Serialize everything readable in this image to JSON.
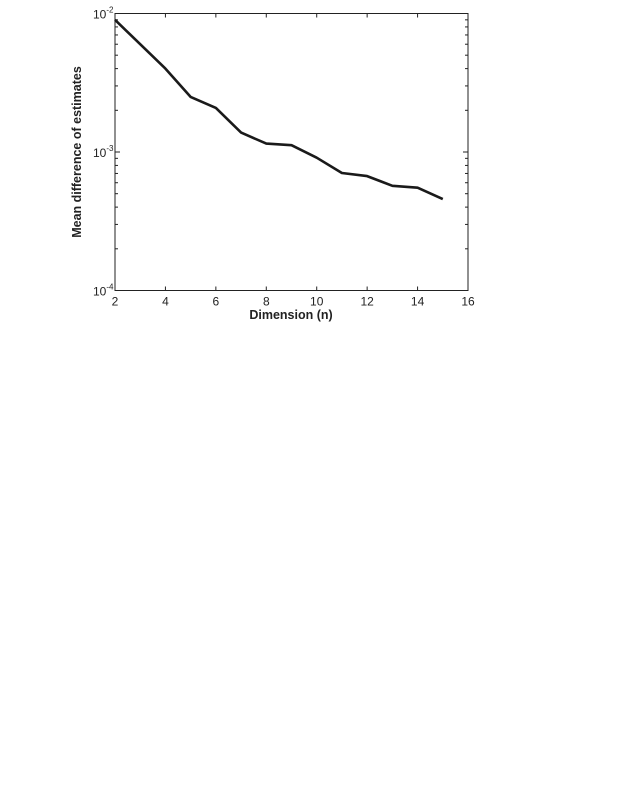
{
  "chart_data": {
    "type": "line",
    "title": "",
    "xlabel": "Dimension (n)",
    "ylabel": "Mean difference of estimates",
    "xlim": [
      2,
      16
    ],
    "ylim": [
      0.0001,
      0.01
    ],
    "yscale": "log",
    "grid": false,
    "xticks": [
      "2",
      "4",
      "6",
      "8",
      "10",
      "12",
      "14",
      "16"
    ],
    "yticks": [
      {
        "base": "10",
        "exp": "-4"
      },
      {
        "base": "10",
        "exp": "-3"
      },
      {
        "base": "10",
        "exp": "-2"
      }
    ],
    "series": [
      {
        "color": "#1a1a1a",
        "x": [
          2,
          3,
          4,
          5,
          6,
          7,
          8,
          9,
          10,
          11,
          12,
          13,
          14,
          15
        ],
        "y": [
          0.009,
          0.006,
          0.004,
          0.0025,
          0.00208,
          0.00138,
          0.00115,
          0.00112,
          0.00091,
          0.000705,
          0.00067,
          0.00057,
          0.000552,
          0.000457
        ]
      }
    ]
  }
}
